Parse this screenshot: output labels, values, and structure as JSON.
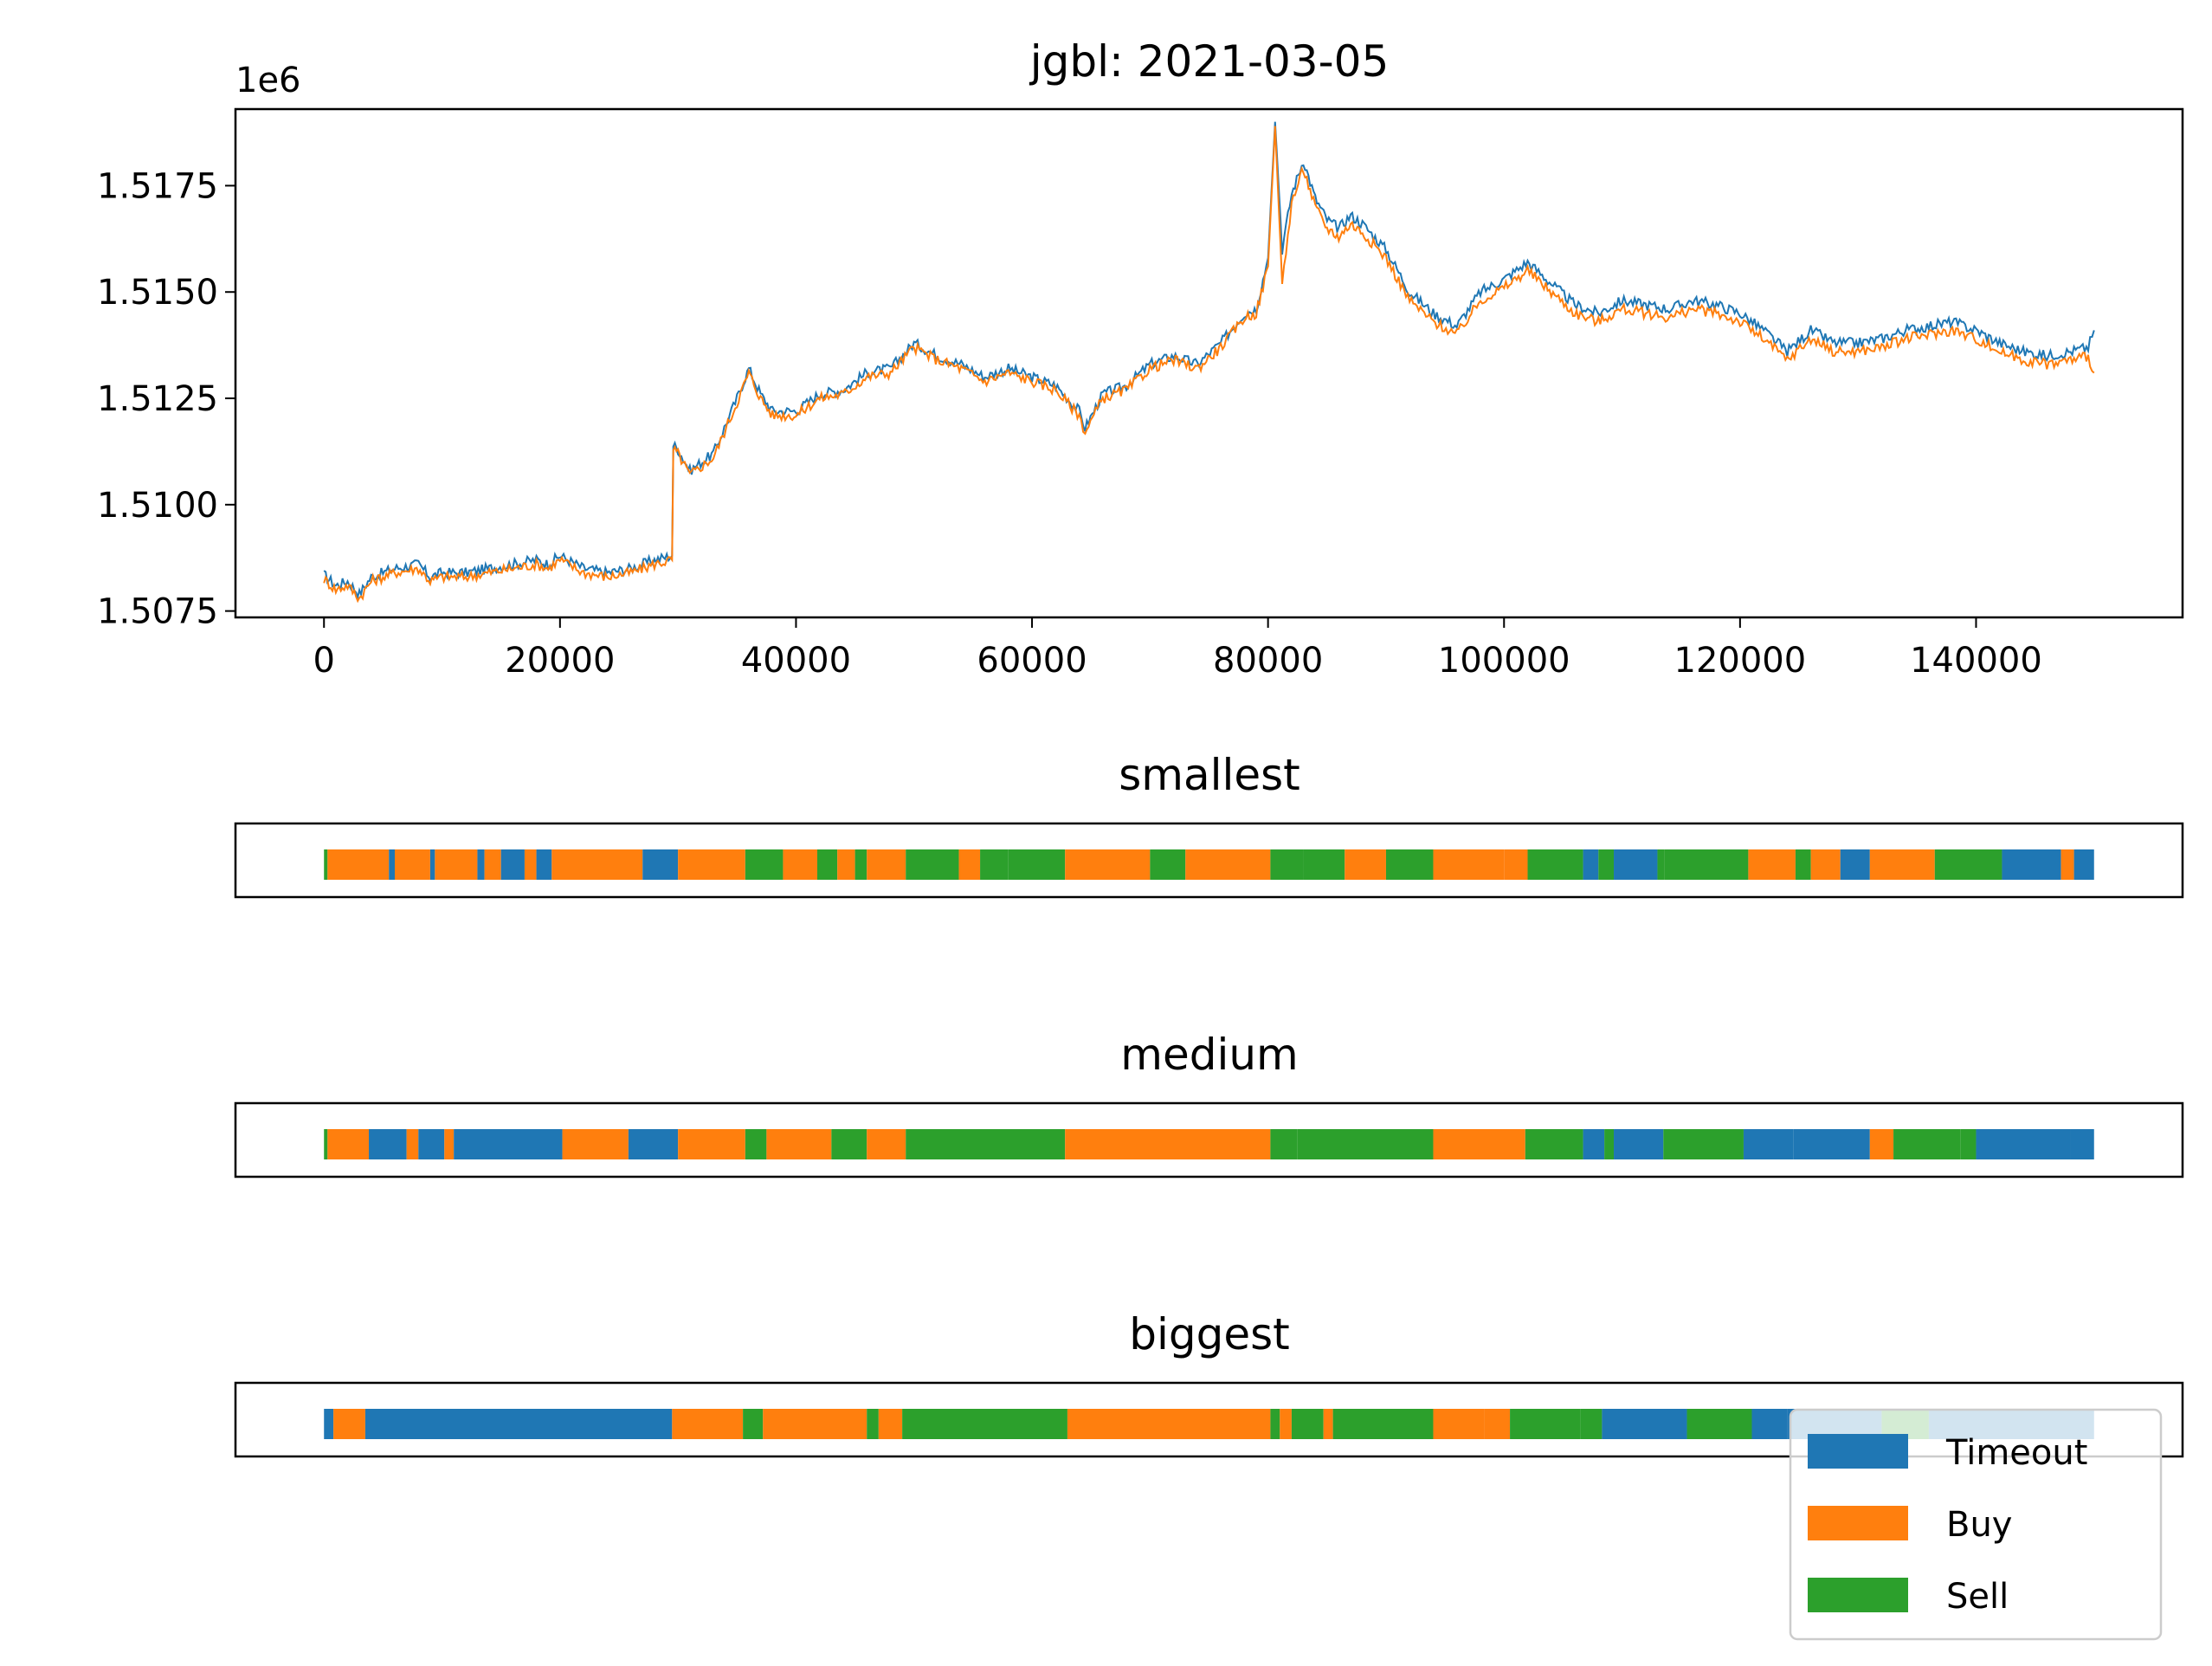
{
  "figure": {
    "title": "jgbl: 2021-03-05",
    "colors": {
      "series_a": "#1f77b4",
      "series_b": "#ff7f0e",
      "timeout": "#1f77b4",
      "buy": "#ff7f0e",
      "sell": "#2ca02c",
      "axis": "#000000"
    }
  },
  "chart_data": [
    {
      "type": "line",
      "title": "jgbl: 2021-03-05",
      "xlabel": "",
      "ylabel": "",
      "y_offset_label": "1e6",
      "xlim": [
        -7500,
        157500
      ],
      "ylim": [
        1.50735,
        1.5193
      ],
      "x_ticks": [
        0,
        20000,
        40000,
        60000,
        80000,
        100000,
        120000,
        140000
      ],
      "x_tick_labels": [
        "0",
        "20000",
        "40000",
        "60000",
        "80000",
        "100000",
        "120000",
        "140000"
      ],
      "y_ticks": [
        1.5075,
        1.51,
        1.5125,
        1.515,
        1.5175
      ],
      "y_tick_labels": [
        "1.5075",
        "1.5100",
        "1.5125",
        "1.5150",
        "1.5175"
      ],
      "grid": false,
      "series": [
        {
          "color": "#1f77b4",
          "x": [
            0,
            1000,
            2000,
            3000,
            4000,
            5000,
            6000,
            8000,
            9000,
            10000,
            12000,
            14000,
            16000,
            18000,
            19000,
            20000,
            22000,
            24000,
            26000,
            28000,
            29500,
            29600,
            30000,
            31000,
            33000,
            35000,
            36000,
            37000,
            38000,
            40000,
            42000,
            44000,
            46000,
            48000,
            50000,
            52000,
            54000,
            56000,
            58000,
            60000,
            62000,
            64000,
            64500,
            66000,
            68000,
            70000,
            72000,
            74000,
            76000,
            78000,
            79000,
            80000,
            80600,
            81200,
            82000,
            83000,
            84000,
            85000,
            86000,
            87000,
            88000,
            90000,
            92000,
            94000,
            96000,
            98000,
            100000,
            102000,
            104000,
            106000,
            108000,
            110000,
            112000,
            114000,
            116000,
            118000,
            120000,
            122000,
            124000,
            126000,
            128000,
            130000,
            132000,
            134000,
            136000,
            138000,
            140000,
            142000,
            144000,
            146000,
            148000,
            149500,
            150000
          ],
          "y": [
            1.50835,
            1.5081,
            1.5082,
            1.5079,
            1.5083,
            1.5084,
            1.5085,
            1.5086,
            1.5083,
            1.5084,
            1.5084,
            1.5085,
            1.5086,
            1.5087,
            1.5086,
            1.5088,
            1.5085,
            1.5084,
            1.5085,
            1.5087,
            1.5088,
            1.5114,
            1.5113,
            1.5108,
            1.5112,
            1.5125,
            1.5132,
            1.5126,
            1.5122,
            1.5122,
            1.5126,
            1.5127,
            1.5131,
            1.5132,
            1.5138,
            1.5135,
            1.5133,
            1.513,
            1.5132,
            1.513,
            1.5128,
            1.5122,
            1.5118,
            1.5126,
            1.5128,
            1.5133,
            1.5135,
            1.5133,
            1.5138,
            1.5145,
            1.5146,
            1.5158,
            1.519,
            1.516,
            1.5173,
            1.5181,
            1.5172,
            1.5167,
            1.5165,
            1.5168,
            1.5166,
            1.516,
            1.515,
            1.5145,
            1.5142,
            1.515,
            1.5153,
            1.5157,
            1.5152,
            1.5147,
            1.5145,
            1.5148,
            1.5147,
            1.5146,
            1.5148,
            1.5147,
            1.5145,
            1.5141,
            1.5136,
            1.5141,
            1.5138,
            1.5138,
            1.5139,
            1.5141,
            1.5142,
            1.5143,
            1.5141,
            1.5138,
            1.5136,
            1.5135,
            1.5136,
            1.5137,
            1.5141
          ]
        },
        {
          "color": "#ff7f0e",
          "x": [
            0,
            1000,
            2000,
            3000,
            4000,
            5000,
            6000,
            8000,
            9000,
            10000,
            12000,
            14000,
            16000,
            18000,
            19000,
            20000,
            22000,
            24000,
            26000,
            28000,
            29500,
            29600,
            30000,
            31000,
            33000,
            35000,
            36000,
            37000,
            38000,
            40000,
            42000,
            44000,
            46000,
            48000,
            50000,
            52000,
            54000,
            56000,
            58000,
            60000,
            62000,
            64000,
            64500,
            66000,
            68000,
            70000,
            72000,
            74000,
            76000,
            78000,
            79000,
            80000,
            80600,
            81200,
            82000,
            83000,
            84000,
            85000,
            86000,
            87000,
            88000,
            90000,
            92000,
            94000,
            96000,
            98000,
            100000,
            102000,
            104000,
            106000,
            108000,
            110000,
            112000,
            114000,
            116000,
            118000,
            120000,
            122000,
            124000,
            126000,
            128000,
            130000,
            132000,
            134000,
            136000,
            138000,
            140000,
            142000,
            144000,
            146000,
            148000,
            149500,
            150000
          ],
          "y": [
            1.50825,
            1.508,
            1.5081,
            1.5078,
            1.5082,
            1.5083,
            1.5084,
            1.5085,
            1.5082,
            1.5083,
            1.5083,
            1.5084,
            1.5085,
            1.5086,
            1.5085,
            1.5087,
            1.5084,
            1.5083,
            1.5084,
            1.5086,
            1.5087,
            1.5113,
            1.5112,
            1.5107,
            1.5111,
            1.5124,
            1.5131,
            1.5125,
            1.5121,
            1.5121,
            1.5125,
            1.5126,
            1.513,
            1.5131,
            1.5137,
            1.5134,
            1.5132,
            1.5129,
            1.5131,
            1.5129,
            1.5127,
            1.5121,
            1.5117,
            1.5125,
            1.5127,
            1.5132,
            1.5134,
            1.5132,
            1.5137,
            1.5144,
            1.5145,
            1.5156,
            1.5189,
            1.5152,
            1.5171,
            1.5179,
            1.517,
            1.5165,
            1.5163,
            1.5166,
            1.5164,
            1.5158,
            1.5148,
            1.5143,
            1.514,
            1.5148,
            1.5151,
            1.5155,
            1.515,
            1.5145,
            1.5143,
            1.5146,
            1.5145,
            1.5144,
            1.5146,
            1.5145,
            1.5143,
            1.5139,
            1.5134,
            1.5139,
            1.5136,
            1.5136,
            1.5137,
            1.5139,
            1.514,
            1.5141,
            1.5139,
            1.5136,
            1.5134,
            1.5133,
            1.5134,
            1.5135,
            1.5131
          ]
        }
      ]
    },
    {
      "type": "bar",
      "title": "smallest",
      "xlim": [
        -7500,
        157500
      ],
      "segments": [
        {
          "start": 0,
          "end": 300,
          "cat": "sell"
        },
        {
          "start": 300,
          "end": 5500,
          "cat": "buy"
        },
        {
          "start": 5500,
          "end": 6000,
          "cat": "timeout"
        },
        {
          "start": 6000,
          "end": 9000,
          "cat": "buy"
        },
        {
          "start": 9000,
          "end": 9400,
          "cat": "timeout"
        },
        {
          "start": 9400,
          "end": 13000,
          "cat": "buy"
        },
        {
          "start": 13000,
          "end": 13600,
          "cat": "timeout"
        },
        {
          "start": 13600,
          "end": 15000,
          "cat": "buy"
        },
        {
          "start": 15000,
          "end": 17000,
          "cat": "timeout"
        },
        {
          "start": 17000,
          "end": 18000,
          "cat": "buy"
        },
        {
          "start": 18000,
          "end": 19300,
          "cat": "timeout"
        },
        {
          "start": 19300,
          "end": 27000,
          "cat": "buy"
        },
        {
          "start": 27000,
          "end": 30000,
          "cat": "timeout"
        },
        {
          "start": 30000,
          "end": 35700,
          "cat": "buy"
        },
        {
          "start": 35700,
          "end": 38900,
          "cat": "sell"
        },
        {
          "start": 38900,
          "end": 41800,
          "cat": "buy"
        },
        {
          "start": 41800,
          "end": 43500,
          "cat": "sell"
        },
        {
          "start": 43500,
          "end": 45000,
          "cat": "buy"
        },
        {
          "start": 45000,
          "end": 46000,
          "cat": "sell"
        },
        {
          "start": 46000,
          "end": 49300,
          "cat": "buy"
        },
        {
          "start": 49300,
          "end": 53800,
          "cat": "sell"
        },
        {
          "start": 53800,
          "end": 55600,
          "cat": "buy"
        },
        {
          "start": 55600,
          "end": 58000,
          "cat": "sell"
        },
        {
          "start": 58000,
          "end": 62800,
          "cat": "sell"
        },
        {
          "start": 62800,
          "end": 70000,
          "cat": "buy"
        },
        {
          "start": 70000,
          "end": 73000,
          "cat": "sell"
        },
        {
          "start": 73000,
          "end": 80200,
          "cat": "buy"
        },
        {
          "start": 80200,
          "end": 83000,
          "cat": "sell"
        },
        {
          "start": 83000,
          "end": 86500,
          "cat": "sell"
        },
        {
          "start": 86500,
          "end": 90000,
          "cat": "buy"
        },
        {
          "start": 90000,
          "end": 94000,
          "cat": "sell"
        },
        {
          "start": 94000,
          "end": 100000,
          "cat": "buy"
        },
        {
          "start": 100000,
          "end": 102000,
          "cat": "buy"
        },
        {
          "start": 102000,
          "end": 106700,
          "cat": "sell"
        },
        {
          "start": 106700,
          "end": 108000,
          "cat": "timeout"
        },
        {
          "start": 108000,
          "end": 109300,
          "cat": "sell"
        },
        {
          "start": 109300,
          "end": 113000,
          "cat": "timeout"
        },
        {
          "start": 113000,
          "end": 113600,
          "cat": "sell"
        },
        {
          "start": 113600,
          "end": 120700,
          "cat": "sell"
        },
        {
          "start": 120700,
          "end": 124700,
          "cat": "buy"
        },
        {
          "start": 124700,
          "end": 126000,
          "cat": "sell"
        },
        {
          "start": 126000,
          "end": 128500,
          "cat": "buy"
        },
        {
          "start": 128500,
          "end": 131000,
          "cat": "timeout"
        },
        {
          "start": 131000,
          "end": 136500,
          "cat": "buy"
        },
        {
          "start": 136500,
          "end": 142200,
          "cat": "sell"
        },
        {
          "start": 142200,
          "end": 147200,
          "cat": "timeout"
        },
        {
          "start": 147200,
          "end": 148300,
          "cat": "buy"
        },
        {
          "start": 148300,
          "end": 150000,
          "cat": "timeout"
        }
      ]
    },
    {
      "type": "bar",
      "title": "medium",
      "xlim": [
        -7500,
        157500
      ],
      "segments": [
        {
          "start": 0,
          "end": 300,
          "cat": "sell"
        },
        {
          "start": 300,
          "end": 3800,
          "cat": "buy"
        },
        {
          "start": 3800,
          "end": 7000,
          "cat": "timeout"
        },
        {
          "start": 7000,
          "end": 8000,
          "cat": "buy"
        },
        {
          "start": 8000,
          "end": 10200,
          "cat": "timeout"
        },
        {
          "start": 10200,
          "end": 11000,
          "cat": "buy"
        },
        {
          "start": 11000,
          "end": 20200,
          "cat": "timeout"
        },
        {
          "start": 20200,
          "end": 25800,
          "cat": "buy"
        },
        {
          "start": 25800,
          "end": 30000,
          "cat": "timeout"
        },
        {
          "start": 30000,
          "end": 35700,
          "cat": "buy"
        },
        {
          "start": 35700,
          "end": 37500,
          "cat": "sell"
        },
        {
          "start": 37500,
          "end": 43000,
          "cat": "buy"
        },
        {
          "start": 43000,
          "end": 46000,
          "cat": "sell"
        },
        {
          "start": 46000,
          "end": 49300,
          "cat": "buy"
        },
        {
          "start": 49300,
          "end": 62800,
          "cat": "sell"
        },
        {
          "start": 62800,
          "end": 80200,
          "cat": "buy"
        },
        {
          "start": 80200,
          "end": 82500,
          "cat": "sell"
        },
        {
          "start": 82500,
          "end": 94000,
          "cat": "sell"
        },
        {
          "start": 94000,
          "end": 101800,
          "cat": "buy"
        },
        {
          "start": 101800,
          "end": 106700,
          "cat": "sell"
        },
        {
          "start": 106700,
          "end": 108500,
          "cat": "timeout"
        },
        {
          "start": 108500,
          "end": 109300,
          "cat": "sell"
        },
        {
          "start": 109300,
          "end": 113500,
          "cat": "timeout"
        },
        {
          "start": 113500,
          "end": 120300,
          "cat": "sell"
        },
        {
          "start": 120300,
          "end": 124500,
          "cat": "timeout"
        },
        {
          "start": 124500,
          "end": 131000,
          "cat": "timeout"
        },
        {
          "start": 131000,
          "end": 133000,
          "cat": "buy"
        },
        {
          "start": 133000,
          "end": 138700,
          "cat": "sell"
        },
        {
          "start": 138700,
          "end": 140000,
          "cat": "sell"
        },
        {
          "start": 140000,
          "end": 148000,
          "cat": "timeout"
        },
        {
          "start": 148000,
          "end": 150000,
          "cat": "timeout"
        }
      ]
    },
    {
      "type": "bar",
      "title": "biggest",
      "xlim": [
        -7500,
        157500
      ],
      "segments": [
        {
          "start": 0,
          "end": 800,
          "cat": "timeout"
        },
        {
          "start": 800,
          "end": 3500,
          "cat": "buy"
        },
        {
          "start": 3500,
          "end": 29500,
          "cat": "timeout"
        },
        {
          "start": 29500,
          "end": 35500,
          "cat": "buy"
        },
        {
          "start": 35500,
          "end": 37200,
          "cat": "sell"
        },
        {
          "start": 37200,
          "end": 46000,
          "cat": "buy"
        },
        {
          "start": 46000,
          "end": 47000,
          "cat": "sell"
        },
        {
          "start": 47000,
          "end": 49000,
          "cat": "buy"
        },
        {
          "start": 49000,
          "end": 63000,
          "cat": "sell"
        },
        {
          "start": 63000,
          "end": 80200,
          "cat": "buy"
        },
        {
          "start": 80200,
          "end": 81000,
          "cat": "sell"
        },
        {
          "start": 81000,
          "end": 82000,
          "cat": "buy"
        },
        {
          "start": 82000,
          "end": 84700,
          "cat": "sell"
        },
        {
          "start": 84700,
          "end": 85500,
          "cat": "buy"
        },
        {
          "start": 85500,
          "end": 94000,
          "cat": "sell"
        },
        {
          "start": 94000,
          "end": 98300,
          "cat": "buy"
        },
        {
          "start": 98300,
          "end": 100500,
          "cat": "buy"
        },
        {
          "start": 100500,
          "end": 106500,
          "cat": "sell"
        },
        {
          "start": 106500,
          "end": 108300,
          "cat": "sell"
        },
        {
          "start": 108300,
          "end": 115500,
          "cat": "timeout"
        },
        {
          "start": 115500,
          "end": 121000,
          "cat": "sell"
        },
        {
          "start": 121000,
          "end": 124000,
          "cat": "timeout"
        },
        {
          "start": 124000,
          "end": 132000,
          "cat": "timeout"
        },
        {
          "start": 132000,
          "end": 136000,
          "cat": "sell"
        },
        {
          "start": 136000,
          "end": 150000,
          "cat": "timeout"
        }
      ]
    }
  ],
  "legend": {
    "placement": "lower-right",
    "entries": [
      {
        "key": "timeout",
        "label": "Timeout",
        "color": "#1f77b4"
      },
      {
        "key": "buy",
        "label": "Buy",
        "color": "#ff7f0e"
      },
      {
        "key": "sell",
        "label": "Sell",
        "color": "#2ca02c"
      }
    ]
  }
}
